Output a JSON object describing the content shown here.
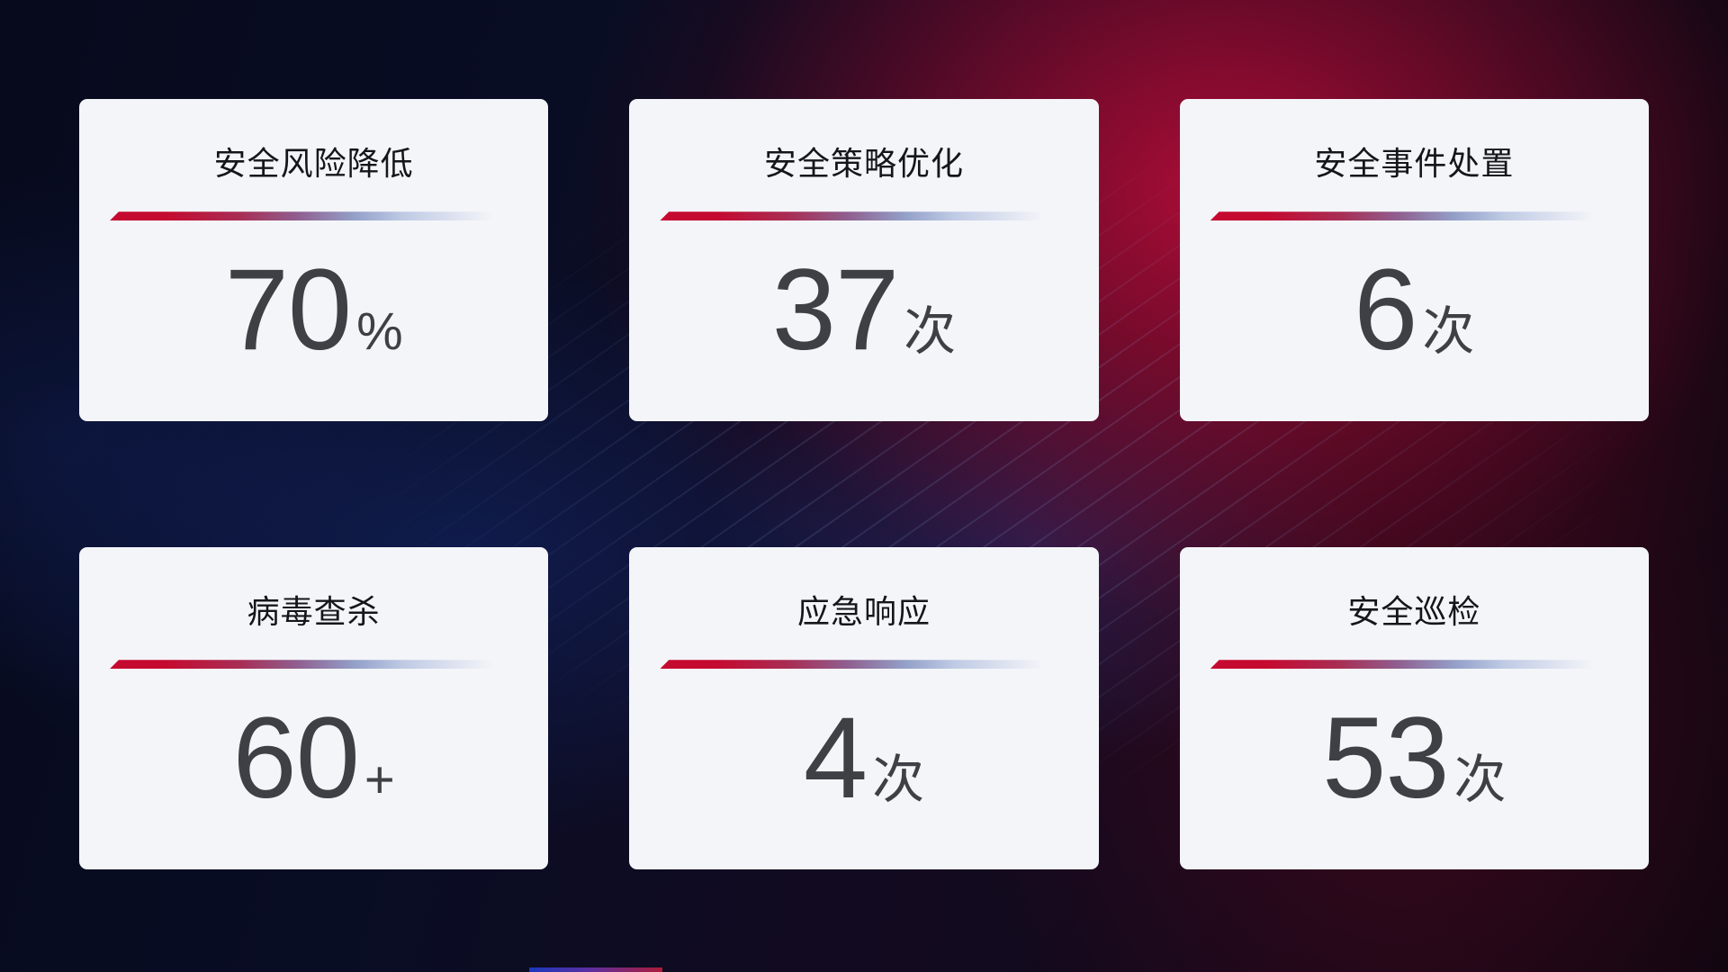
{
  "colors": {
    "card_background": "#f4f5f9",
    "title_text": "#15161a",
    "value_text": "#3f4046",
    "divider_red": "#c50a30",
    "divider_purple": "#8f5f8f",
    "divider_light_blue": "#bfcae4",
    "background_red_glow": "#ba0c38",
    "background_blue_glow": "#183084",
    "background_base": "#070a1c"
  },
  "cards": [
    {
      "title": "安全风险降低",
      "value": "70",
      "unit": "%"
    },
    {
      "title": "安全策略优化",
      "value": "37",
      "unit": "次"
    },
    {
      "title": "安全事件处置",
      "value": "6",
      "unit": "次"
    },
    {
      "title": "病毒查杀",
      "value": "60",
      "unit": "+"
    },
    {
      "title": "应急响应",
      "value": "4",
      "unit": "次"
    },
    {
      "title": "安全巡检",
      "value": "53",
      "unit": "次"
    }
  ]
}
